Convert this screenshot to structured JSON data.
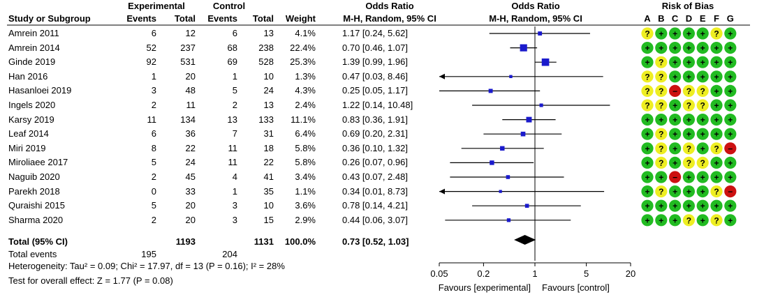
{
  "headers": {
    "group_exp": "Experimental",
    "group_ctrl": "Control",
    "study": "Study or Subgroup",
    "events_exp": "Events",
    "total_exp": "Total",
    "events_ctrl": "Events",
    "total_ctrl": "Total",
    "weight": "Weight",
    "or_title": "Odds Ratio",
    "or_method": "M-H, Random, 95% CI",
    "plot_title": "Odds Ratio",
    "plot_method": "M-H, Random, 95% CI",
    "rob_title": "Risk of Bias"
  },
  "studies": [
    {
      "name": "Amrein 2011",
      "e_events": "6",
      "e_total": "12",
      "c_events": "6",
      "c_total": "13",
      "weight": "4.1%",
      "or_text": "1.17 [0.24, 5.62]",
      "or": 1.17,
      "lo": 0.24,
      "hi": 5.62,
      "w": 4.1,
      "bias": [
        "?",
        "+",
        "+",
        "+",
        "+",
        "?",
        "+"
      ]
    },
    {
      "name": "Amrein 2014",
      "e_events": "52",
      "e_total": "237",
      "c_events": "68",
      "c_total": "238",
      "weight": "22.4%",
      "or_text": "0.70 [0.46, 1.07]",
      "or": 0.7,
      "lo": 0.46,
      "hi": 1.07,
      "w": 22.4,
      "bias": [
        "+",
        "+",
        "+",
        "+",
        "+",
        "+",
        "+"
      ]
    },
    {
      "name": "Ginde 2019",
      "e_events": "92",
      "e_total": "531",
      "c_events": "69",
      "c_total": "528",
      "weight": "25.3%",
      "or_text": "1.39 [0.99, 1.96]",
      "or": 1.39,
      "lo": 0.99,
      "hi": 1.96,
      "w": 25.3,
      "bias": [
        "+",
        "?",
        "+",
        "+",
        "+",
        "+",
        "+"
      ]
    },
    {
      "name": "Han 2016",
      "e_events": "1",
      "e_total": "20",
      "c_events": "1",
      "c_total": "10",
      "weight": "1.3%",
      "or_text": "0.47 [0.03, 8.46]",
      "or": 0.47,
      "lo": 0.03,
      "hi": 8.46,
      "w": 1.3,
      "bias": [
        "?",
        "?",
        "+",
        "+",
        "+",
        "+",
        "+"
      ]
    },
    {
      "name": "Hasanloei 2019",
      "e_events": "3",
      "e_total": "48",
      "c_events": "5",
      "c_total": "24",
      "weight": "4.3%",
      "or_text": "0.25 [0.05, 1.17]",
      "or": 0.25,
      "lo": 0.05,
      "hi": 1.17,
      "w": 4.3,
      "bias": [
        "?",
        "?",
        "-",
        "?",
        "?",
        "+",
        "+"
      ]
    },
    {
      "name": "Ingels 2020",
      "e_events": "2",
      "e_total": "11",
      "c_events": "2",
      "c_total": "13",
      "weight": "2.4%",
      "or_text": "1.22 [0.14, 10.48]",
      "or": 1.22,
      "lo": 0.14,
      "hi": 10.48,
      "w": 2.4,
      "bias": [
        "?",
        "?",
        "+",
        "?",
        "?",
        "+",
        "+"
      ]
    },
    {
      "name": "Karsy 2019",
      "e_events": "11",
      "e_total": "134",
      "c_events": "13",
      "c_total": "133",
      "weight": "11.1%",
      "or_text": "0.83 [0.36, 1.91]",
      "or": 0.83,
      "lo": 0.36,
      "hi": 1.91,
      "w": 11.1,
      "bias": [
        "+",
        "+",
        "+",
        "+",
        "+",
        "+",
        "+"
      ]
    },
    {
      "name": "Leaf 2014",
      "e_events": "6",
      "e_total": "36",
      "c_events": "7",
      "c_total": "31",
      "weight": "6.4%",
      "or_text": "0.69 [0.20, 2.31]",
      "or": 0.69,
      "lo": 0.2,
      "hi": 2.31,
      "w": 6.4,
      "bias": [
        "+",
        "?",
        "+",
        "+",
        "+",
        "+",
        "+"
      ]
    },
    {
      "name": "Miri 2019",
      "e_events": "8",
      "e_total": "22",
      "c_events": "11",
      "c_total": "18",
      "weight": "5.8%",
      "or_text": "0.36 [0.10, 1.32]",
      "or": 0.36,
      "lo": 0.1,
      "hi": 1.32,
      "w": 5.8,
      "bias": [
        "+",
        "?",
        "+",
        "?",
        "+",
        "?",
        "-"
      ]
    },
    {
      "name": "Miroliaee 2017",
      "e_events": "5",
      "e_total": "24",
      "c_events": "11",
      "c_total": "22",
      "weight": "5.8%",
      "or_text": "0.26 [0.07, 0.96]",
      "or": 0.26,
      "lo": 0.07,
      "hi": 0.96,
      "w": 5.8,
      "bias": [
        "+",
        "?",
        "+",
        "?",
        "?",
        "+",
        "+"
      ]
    },
    {
      "name": "Naguib 2020",
      "e_events": "2",
      "e_total": "45",
      "c_events": "4",
      "c_total": "41",
      "weight": "3.4%",
      "or_text": "0.43 [0.07, 2.48]",
      "or": 0.43,
      "lo": 0.07,
      "hi": 2.48,
      "w": 3.4,
      "bias": [
        "+",
        "+",
        "-",
        "+",
        "+",
        "+",
        "+"
      ]
    },
    {
      "name": "Parekh 2018",
      "e_events": "0",
      "e_total": "33",
      "c_events": "1",
      "c_total": "35",
      "weight": "1.1%",
      "or_text": "0.34 [0.01, 8.73]",
      "or": 0.34,
      "lo": 0.01,
      "hi": 8.73,
      "w": 1.1,
      "bias": [
        "+",
        "?",
        "+",
        "+",
        "+",
        "?",
        "-"
      ]
    },
    {
      "name": "Quraishi 2015",
      "e_events": "5",
      "e_total": "20",
      "c_events": "3",
      "c_total": "10",
      "weight": "3.6%",
      "or_text": "0.78 [0.14, 4.21]",
      "or": 0.78,
      "lo": 0.14,
      "hi": 4.21,
      "w": 3.6,
      "bias": [
        "+",
        "+",
        "+",
        "+",
        "+",
        "+",
        "+"
      ]
    },
    {
      "name": "Sharma 2020",
      "e_events": "2",
      "e_total": "20",
      "c_events": "3",
      "c_total": "15",
      "weight": "2.9%",
      "or_text": "0.44 [0.06, 3.07]",
      "or": 0.44,
      "lo": 0.06,
      "hi": 3.07,
      "w": 2.9,
      "bias": [
        "+",
        "+",
        "+",
        "?",
        "+",
        "?",
        "+"
      ]
    }
  ],
  "total": {
    "label": "Total (95% CI)",
    "e_total": "1193",
    "c_total": "1131",
    "weight": "100.0%",
    "or_text": "0.73 [0.52, 1.03]",
    "or": 0.73,
    "lo": 0.52,
    "hi": 1.03
  },
  "total_events": {
    "label": "Total events",
    "e_events": "195",
    "c_events": "204"
  },
  "heterogeneity": "Heterogeneity: Tau² = 0.09; Chi² = 17.97, df = 13 (P = 0.16); I² = 28%",
  "overall_effect": "Test for overall effect: Z = 1.77 (P = 0.08)",
  "favours_left": "Favours [experimental]",
  "favours_right": "Favours [control]",
  "bias_domains": [
    "A",
    "B",
    "C",
    "D",
    "E",
    "F",
    "G"
  ],
  "colors": {
    "square": "#1a1acc",
    "low": "#22bb22",
    "unclear": "#eeee22",
    "high": "#cc1111"
  },
  "chart_data": {
    "type": "forest",
    "title": "Odds Ratio",
    "xlabel": "M-H, Random, 95% CI",
    "xscale": "log",
    "xlim": [
      0.05,
      20
    ],
    "ticks": [
      0.05,
      0.2,
      1,
      5,
      20
    ],
    "tick_labels": [
      "0.05",
      "0.2",
      "1",
      "5",
      "20"
    ],
    "null_line": 1
  }
}
